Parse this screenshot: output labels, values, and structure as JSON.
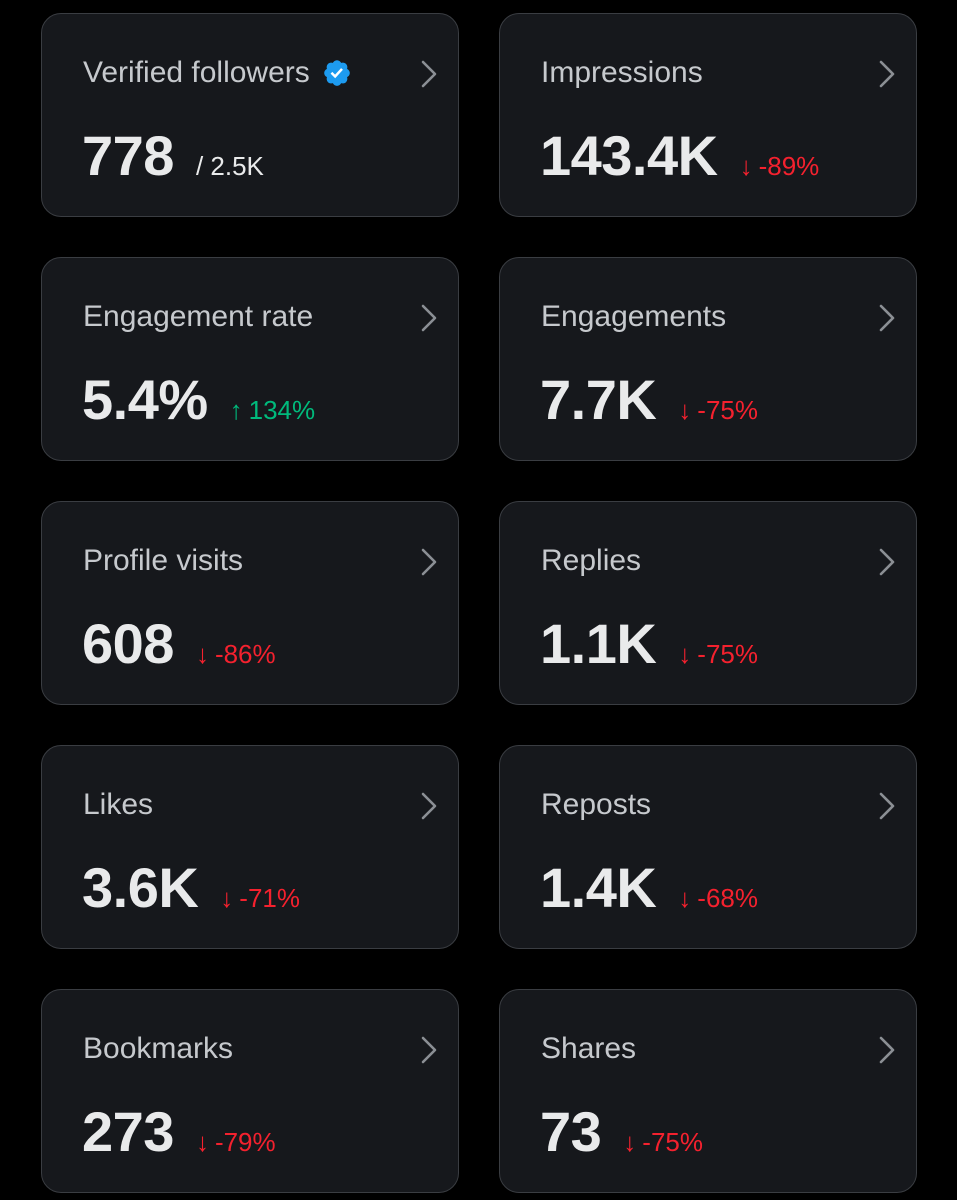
{
  "colors": {
    "background": "#000000",
    "card": "#16181c",
    "card_border": "#3a3d42",
    "label": "#c6c9cd",
    "value": "#e9eaeb",
    "down": "#f4212e",
    "up": "#00ba7c",
    "verified": "#1d9bf0"
  },
  "metrics": [
    {
      "label": "Verified followers",
      "value": "778",
      "secondary": "/ 2.5K",
      "verified_icon": "verified-badge-icon"
    },
    {
      "label": "Impressions",
      "value": "143.4K",
      "delta": "-89%",
      "direction": "down"
    },
    {
      "label": "Engagement rate",
      "value": "5.4%",
      "delta": "134%",
      "direction": "up"
    },
    {
      "label": "Engagements",
      "value": "7.7K",
      "delta": "-75%",
      "direction": "down"
    },
    {
      "label": "Profile visits",
      "value": "608",
      "delta": "-86%",
      "direction": "down"
    },
    {
      "label": "Replies",
      "value": "1.1K",
      "delta": "-75%",
      "direction": "down"
    },
    {
      "label": "Likes",
      "value": "3.6K",
      "delta": "-71%",
      "direction": "down"
    },
    {
      "label": "Reposts",
      "value": "1.4K",
      "delta": "-68%",
      "direction": "down"
    },
    {
      "label": "Bookmarks",
      "value": "273",
      "delta": "-79%",
      "direction": "down"
    },
    {
      "label": "Shares",
      "value": "73",
      "delta": "-75%",
      "direction": "down"
    }
  ],
  "arrows": {
    "down": "↓",
    "up": "↑"
  }
}
